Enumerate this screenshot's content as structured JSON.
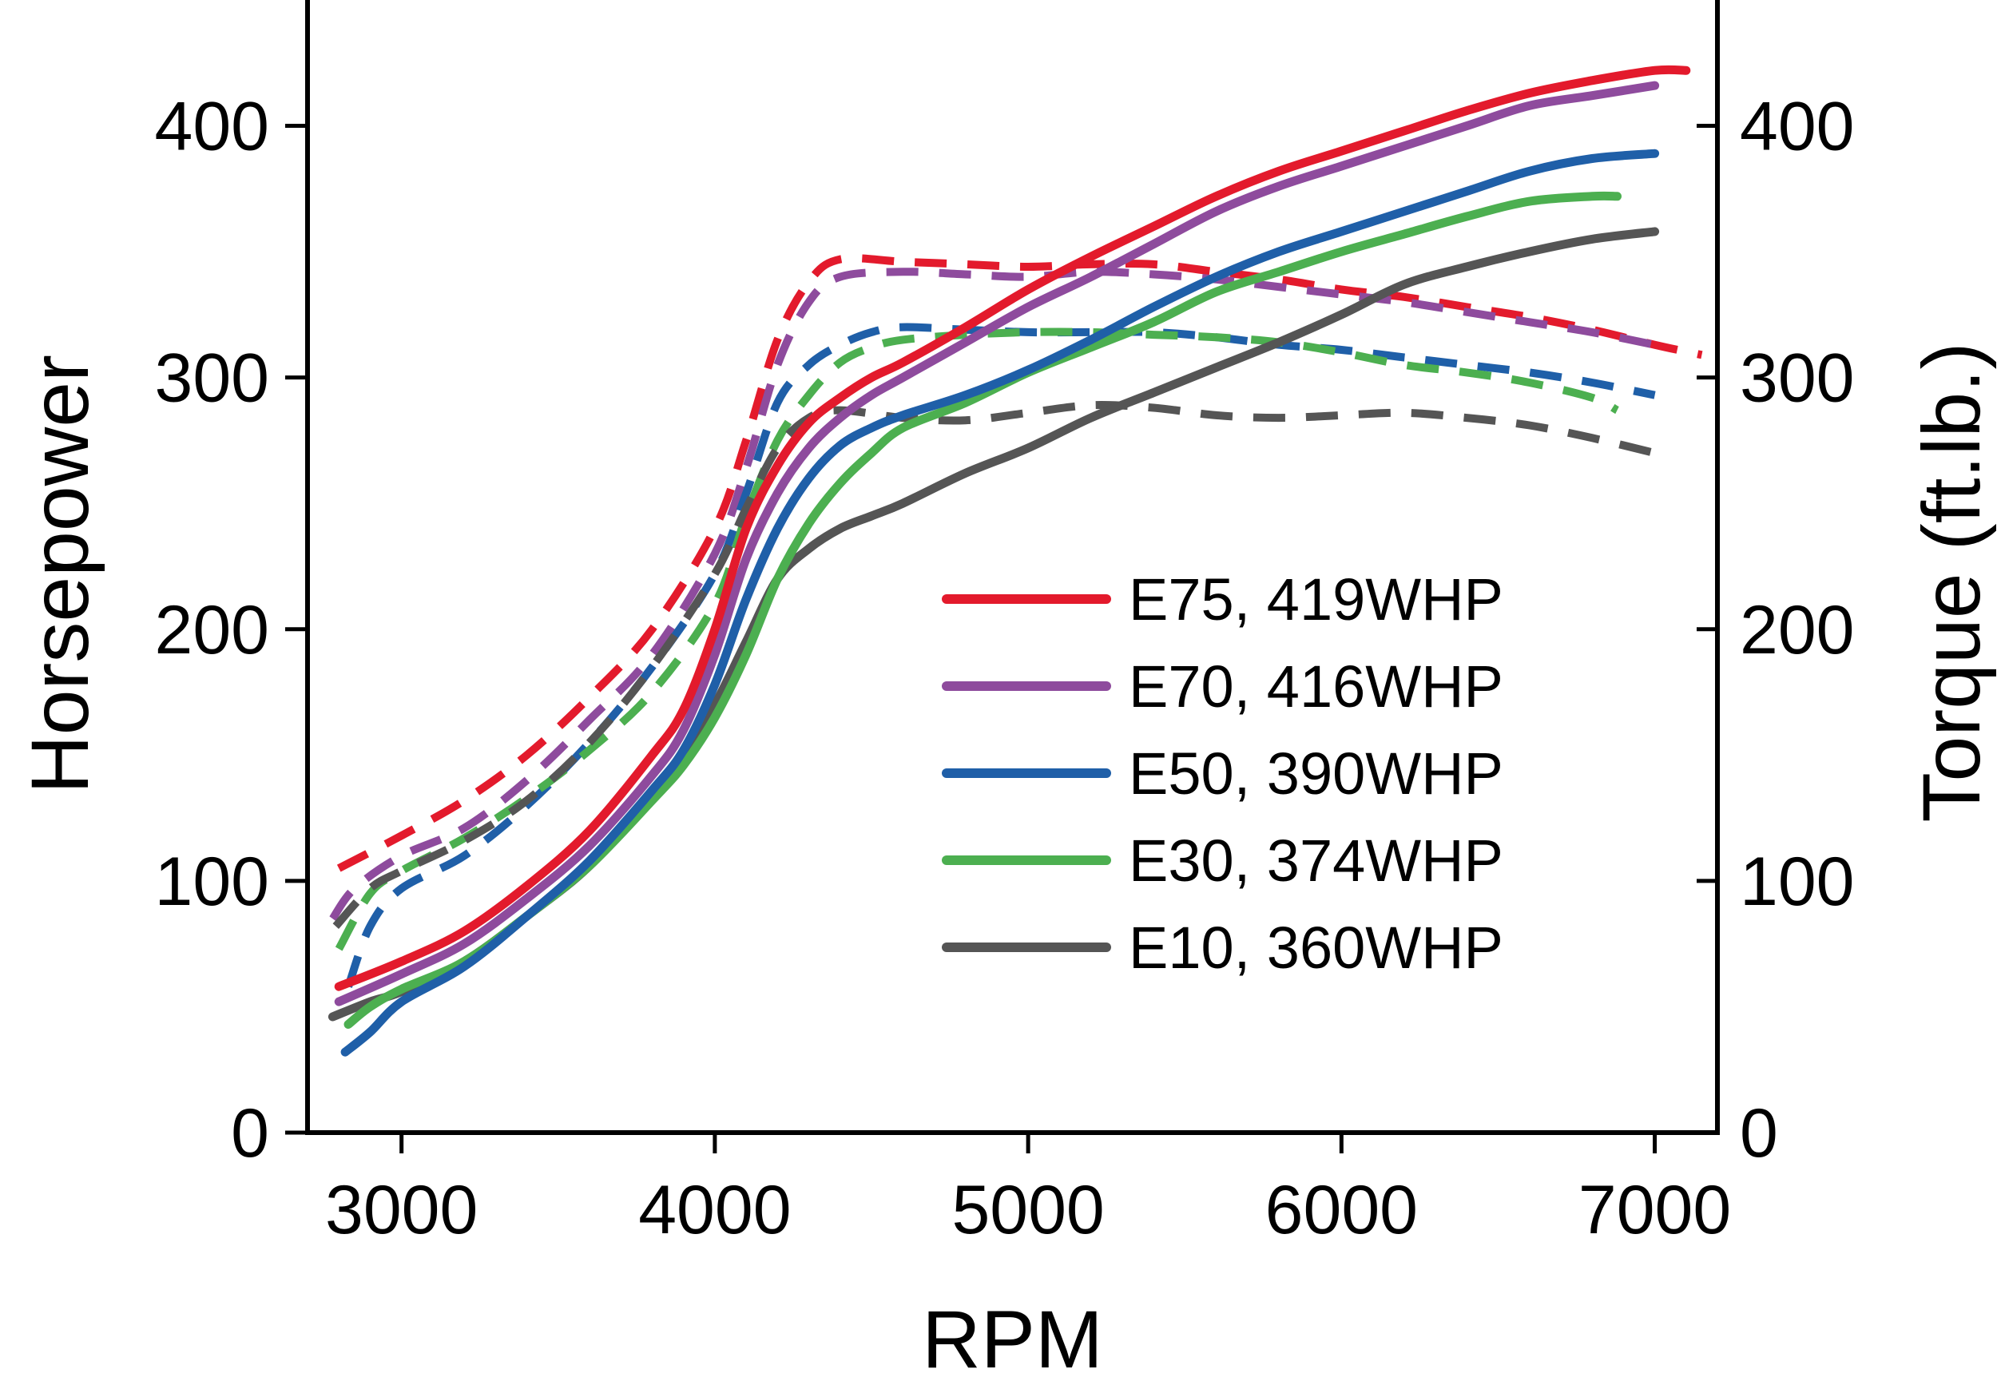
{
  "chart_data": {
    "type": "line",
    "xlabel": "RPM",
    "ylabel": "Horsepower",
    "y2label": "Torque (ft.lb.)",
    "xlim": [
      2700,
      7200
    ],
    "ylim": [
      0,
      450
    ],
    "y2lim": [
      0,
      450
    ],
    "x_ticks": [
      3000,
      4000,
      5000,
      6000,
      7000
    ],
    "y_ticks": [
      0,
      100,
      200,
      300,
      400
    ],
    "y2_ticks": [
      0,
      100,
      200,
      300,
      400
    ],
    "grid": false,
    "legend_position": "center-right",
    "series": [
      {
        "name": "E75, 419WHP",
        "color": "#e31a2c",
        "horsepower": [
          [
            2800,
            58
          ],
          [
            3000,
            68
          ],
          [
            3200,
            80
          ],
          [
            3400,
            98
          ],
          [
            3600,
            120
          ],
          [
            3800,
            150
          ],
          [
            3900,
            168
          ],
          [
            4000,
            200
          ],
          [
            4100,
            240
          ],
          [
            4200,
            265
          ],
          [
            4300,
            282
          ],
          [
            4400,
            292
          ],
          [
            4500,
            300
          ],
          [
            4600,
            306
          ],
          [
            4800,
            320
          ],
          [
            5000,
            335
          ],
          [
            5200,
            348
          ],
          [
            5400,
            360
          ],
          [
            5600,
            372
          ],
          [
            5800,
            382
          ],
          [
            6000,
            390
          ],
          [
            6200,
            398
          ],
          [
            6400,
            406
          ],
          [
            6600,
            413
          ],
          [
            6800,
            418
          ],
          [
            7000,
            422
          ],
          [
            7100,
            422
          ]
        ],
        "torque": [
          [
            2800,
            105
          ],
          [
            3000,
            118
          ],
          [
            3200,
            132
          ],
          [
            3400,
            150
          ],
          [
            3600,
            173
          ],
          [
            3800,
            200
          ],
          [
            4000,
            240
          ],
          [
            4100,
            275
          ],
          [
            4200,
            315
          ],
          [
            4300,
            338
          ],
          [
            4400,
            347
          ],
          [
            4600,
            346
          ],
          [
            4800,
            345
          ],
          [
            5000,
            344
          ],
          [
            5200,
            345
          ],
          [
            5400,
            345
          ],
          [
            5600,
            342
          ],
          [
            5800,
            339
          ],
          [
            6000,
            335
          ],
          [
            6200,
            332
          ],
          [
            6400,
            328
          ],
          [
            6600,
            324
          ],
          [
            6800,
            319
          ],
          [
            7000,
            313
          ],
          [
            7150,
            309
          ]
        ]
      },
      {
        "name": "E70, 416WHP",
        "color": "#8e4b9d",
        "horsepower": [
          [
            2800,
            52
          ],
          [
            3000,
            63
          ],
          [
            3200,
            75
          ],
          [
            3400,
            93
          ],
          [
            3600,
            114
          ],
          [
            3800,
            142
          ],
          [
            3900,
            160
          ],
          [
            4000,
            190
          ],
          [
            4100,
            228
          ],
          [
            4200,
            254
          ],
          [
            4300,
            272
          ],
          [
            4400,
            284
          ],
          [
            4500,
            293
          ],
          [
            4600,
            300
          ],
          [
            4800,
            314
          ],
          [
            5000,
            328
          ],
          [
            5200,
            340
          ],
          [
            5400,
            353
          ],
          [
            5600,
            366
          ],
          [
            5800,
            376
          ],
          [
            6000,
            384
          ],
          [
            6200,
            392
          ],
          [
            6400,
            400
          ],
          [
            6600,
            408
          ],
          [
            6800,
            412
          ],
          [
            7000,
            416
          ]
        ],
        "torque": [
          [
            2780,
            85
          ],
          [
            2850,
            97
          ],
          [
            3000,
            110
          ],
          [
            3200,
            121
          ],
          [
            3400,
            140
          ],
          [
            3600,
            164
          ],
          [
            3800,
            190
          ],
          [
            4000,
            230
          ],
          [
            4100,
            264
          ],
          [
            4200,
            305
          ],
          [
            4300,
            330
          ],
          [
            4400,
            340
          ],
          [
            4600,
            342
          ],
          [
            4800,
            341
          ],
          [
            5000,
            340
          ],
          [
            5200,
            342
          ],
          [
            5400,
            341
          ],
          [
            5600,
            339
          ],
          [
            5800,
            336
          ],
          [
            6000,
            333
          ],
          [
            6200,
            330
          ],
          [
            6400,
            326
          ],
          [
            6600,
            322
          ],
          [
            6800,
            318
          ],
          [
            7000,
            313
          ]
        ]
      },
      {
        "name": "E50, 390WHP",
        "color": "#1f5fa8",
        "horsepower": [
          [
            2820,
            32
          ],
          [
            2900,
            40
          ],
          [
            3000,
            52
          ],
          [
            3200,
            66
          ],
          [
            3400,
            86
          ],
          [
            3600,
            108
          ],
          [
            3800,
            136
          ],
          [
            3900,
            152
          ],
          [
            4000,
            178
          ],
          [
            4100,
            212
          ],
          [
            4200,
            240
          ],
          [
            4300,
            260
          ],
          [
            4400,
            273
          ],
          [
            4500,
            280
          ],
          [
            4600,
            285
          ],
          [
            4800,
            293
          ],
          [
            5000,
            303
          ],
          [
            5200,
            315
          ],
          [
            5400,
            328
          ],
          [
            5600,
            340
          ],
          [
            5800,
            350
          ],
          [
            6000,
            358
          ],
          [
            6200,
            366
          ],
          [
            6400,
            374
          ],
          [
            6600,
            382
          ],
          [
            6800,
            387
          ],
          [
            7000,
            389
          ]
        ],
        "torque": [
          [
            2830,
            58
          ],
          [
            2900,
            82
          ],
          [
            3000,
            97
          ],
          [
            3200,
            110
          ],
          [
            3400,
            130
          ],
          [
            3600,
            155
          ],
          [
            3800,
            185
          ],
          [
            4000,
            222
          ],
          [
            4100,
            254
          ],
          [
            4200,
            290
          ],
          [
            4300,
            305
          ],
          [
            4400,
            313
          ],
          [
            4500,
            318
          ],
          [
            4600,
            320
          ],
          [
            4800,
            319
          ],
          [
            5000,
            318
          ],
          [
            5200,
            318
          ],
          [
            5400,
            318
          ],
          [
            5600,
            316
          ],
          [
            5800,
            313
          ],
          [
            6000,
            311
          ],
          [
            6200,
            308
          ],
          [
            6400,
            305
          ],
          [
            6600,
            302
          ],
          [
            6800,
            298
          ],
          [
            7000,
            293
          ]
        ]
      },
      {
        "name": "E30, 374WHP",
        "color": "#4caf50",
        "horsepower": [
          [
            2830,
            43
          ],
          [
            2900,
            50
          ],
          [
            3000,
            57
          ],
          [
            3200,
            68
          ],
          [
            3400,
            86
          ],
          [
            3600,
            106
          ],
          [
            3800,
            132
          ],
          [
            3900,
            146
          ],
          [
            4000,
            165
          ],
          [
            4100,
            190
          ],
          [
            4200,
            220
          ],
          [
            4300,
            242
          ],
          [
            4400,
            258
          ],
          [
            4500,
            270
          ],
          [
            4600,
            280
          ],
          [
            4800,
            290
          ],
          [
            5000,
            302
          ],
          [
            5200,
            312
          ],
          [
            5400,
            322
          ],
          [
            5600,
            334
          ],
          [
            5800,
            342
          ],
          [
            6000,
            350
          ],
          [
            6200,
            357
          ],
          [
            6400,
            364
          ],
          [
            6600,
            370
          ],
          [
            6800,
            372
          ],
          [
            6880,
            372
          ]
        ],
        "torque": [
          [
            2800,
            73
          ],
          [
            2900,
            95
          ],
          [
            3000,
            104
          ],
          [
            3200,
            117
          ],
          [
            3400,
            133
          ],
          [
            3600,
            152
          ],
          [
            3800,
            175
          ],
          [
            4000,
            210
          ],
          [
            4100,
            245
          ],
          [
            4200,
            275
          ],
          [
            4300,
            293
          ],
          [
            4400,
            306
          ],
          [
            4500,
            312
          ],
          [
            4600,
            315
          ],
          [
            4800,
            317
          ],
          [
            5000,
            318
          ],
          [
            5200,
            318
          ],
          [
            5400,
            317
          ],
          [
            5600,
            316
          ],
          [
            5800,
            314
          ],
          [
            6000,
            310
          ],
          [
            6200,
            305
          ],
          [
            6400,
            302
          ],
          [
            6600,
            298
          ],
          [
            6800,
            292
          ],
          [
            6880,
            287
          ]
        ]
      },
      {
        "name": "E10, 360WHP",
        "color": "#555555",
        "horsepower": [
          [
            2780,
            46
          ],
          [
            2900,
            52
          ],
          [
            3000,
            56
          ],
          [
            3200,
            68
          ],
          [
            3400,
            86
          ],
          [
            3600,
            106
          ],
          [
            3800,
            134
          ],
          [
            3900,
            150
          ],
          [
            4000,
            170
          ],
          [
            4100,
            195
          ],
          [
            4200,
            220
          ],
          [
            4300,
            232
          ],
          [
            4400,
            240
          ],
          [
            4500,
            245
          ],
          [
            4600,
            250
          ],
          [
            4800,
            262
          ],
          [
            5000,
            272
          ],
          [
            5200,
            284
          ],
          [
            5400,
            294
          ],
          [
            5600,
            304
          ],
          [
            5800,
            314
          ],
          [
            6000,
            325
          ],
          [
            6200,
            337
          ],
          [
            6400,
            344
          ],
          [
            6600,
            350
          ],
          [
            6800,
            355
          ],
          [
            7000,
            358
          ]
        ],
        "torque": [
          [
            2790,
            82
          ],
          [
            2900,
            97
          ],
          [
            3000,
            104
          ],
          [
            3200,
            116
          ],
          [
            3400,
            132
          ],
          [
            3600,
            155
          ],
          [
            3800,
            185
          ],
          [
            4000,
            222
          ],
          [
            4100,
            248
          ],
          [
            4200,
            272
          ],
          [
            4300,
            284
          ],
          [
            4400,
            287
          ],
          [
            4600,
            284
          ],
          [
            4800,
            283
          ],
          [
            5000,
            286
          ],
          [
            5200,
            289
          ],
          [
            5400,
            288
          ],
          [
            5600,
            285
          ],
          [
            5800,
            284
          ],
          [
            6000,
            285
          ],
          [
            6200,
            286
          ],
          [
            6400,
            284
          ],
          [
            6600,
            281
          ],
          [
            6800,
            276
          ],
          [
            7000,
            270
          ]
        ]
      }
    ]
  }
}
